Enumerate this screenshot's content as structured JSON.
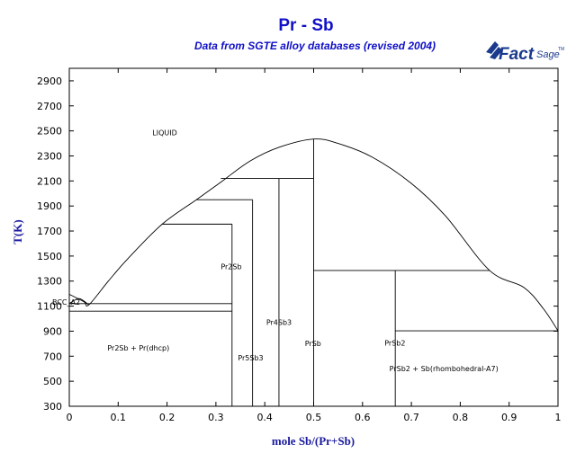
{
  "title": "Pr - Sb",
  "subtitle": "Data from SGTE alloy databases (revised 2004)",
  "logo": {
    "text_main": "Fact",
    "text_sage": "Sage",
    "mark": "TM",
    "color": "#1a3a8c"
  },
  "axes": {
    "xlabel": "mole Sb/(Pr+Sb)",
    "ylabel": "T(K)",
    "xlim": [
      0,
      1
    ],
    "ylim": [
      300,
      3000
    ],
    "xticks": [
      "0",
      "0.1",
      "0.2",
      "0.3",
      "0.4",
      "0.5",
      "0.6",
      "0.7",
      "0.8",
      "0.9",
      "1"
    ],
    "yticks": [
      "300",
      "500",
      "700",
      "900",
      "1100",
      "1300",
      "1500",
      "1700",
      "1900",
      "2100",
      "2300",
      "2500",
      "2700",
      "2900"
    ]
  },
  "chart_data": {
    "type": "phase_diagram",
    "liquidus": [
      [
        0.0,
        1195
      ],
      [
        0.03,
        1135
      ],
      [
        0.04,
        1110
      ],
      [
        0.08,
        1300
      ],
      [
        0.12,
        1480
      ],
      [
        0.19,
        1755
      ],
      [
        0.26,
        1950
      ],
      [
        0.31,
        2090
      ],
      [
        0.37,
        2260
      ],
      [
        0.43,
        2370
      ],
      [
        0.5,
        2435
      ],
      [
        0.55,
        2400
      ],
      [
        0.62,
        2290
      ],
      [
        0.7,
        2080
      ],
      [
        0.77,
        1820
      ],
      [
        0.86,
        1385
      ],
      [
        0.93,
        1250
      ],
      [
        0.97,
        1080
      ],
      [
        1.0,
        903
      ]
    ],
    "left_solvus": [
      [
        0.0,
        1120
      ],
      [
        0.02,
        1160
      ],
      [
        0.04,
        1110
      ]
    ],
    "vertical_lines": [
      {
        "x": 0.333,
        "y0": 300,
        "y1": 1755
      },
      {
        "x": 0.375,
        "y0": 300,
        "y1": 1950
      },
      {
        "x": 0.429,
        "y0": 300,
        "y1": 2120
      },
      {
        "x": 0.5,
        "y0": 300,
        "y1": 2435
      },
      {
        "x": 0.667,
        "y0": 300,
        "y1": 1385
      }
    ],
    "horizontal_lines": [
      {
        "y": 1120,
        "x0": 0.0,
        "x1": 0.333
      },
      {
        "y": 1060,
        "x0": 0.0,
        "x1": 0.333
      },
      {
        "y": 1755,
        "x0": 0.19,
        "x1": 0.333
      },
      {
        "y": 1950,
        "x0": 0.26,
        "x1": 0.375
      },
      {
        "y": 2120,
        "x0": 0.31,
        "x1": 0.5
      },
      {
        "y": 1385,
        "x0": 0.5,
        "x1": 0.86
      },
      {
        "y": 903,
        "x0": 0.667,
        "x1": 1.0
      }
    ],
    "labels": [
      {
        "text": "LIQUID",
        "x": 0.17,
        "y": 2465
      },
      {
        "text": "BCC_A2",
        "x": -0.035,
        "y": 1110
      },
      {
        "text": "Pr2Sb",
        "x": 0.31,
        "y": 1395
      },
      {
        "text": "Pr4Sb3",
        "x": 0.403,
        "y": 950
      },
      {
        "text": "Pr5Sb3",
        "x": 0.345,
        "y": 665
      },
      {
        "text": "PrSb",
        "x": 0.482,
        "y": 780
      },
      {
        "text": "PrSb2",
        "x": 0.645,
        "y": 785
      },
      {
        "text": "Pr2Sb + Pr(dhcp)",
        "x": 0.078,
        "y": 745
      },
      {
        "text": "PrSb2 + Sb(rhombohedral-A7)",
        "x": 0.655,
        "y": 580
      }
    ]
  }
}
